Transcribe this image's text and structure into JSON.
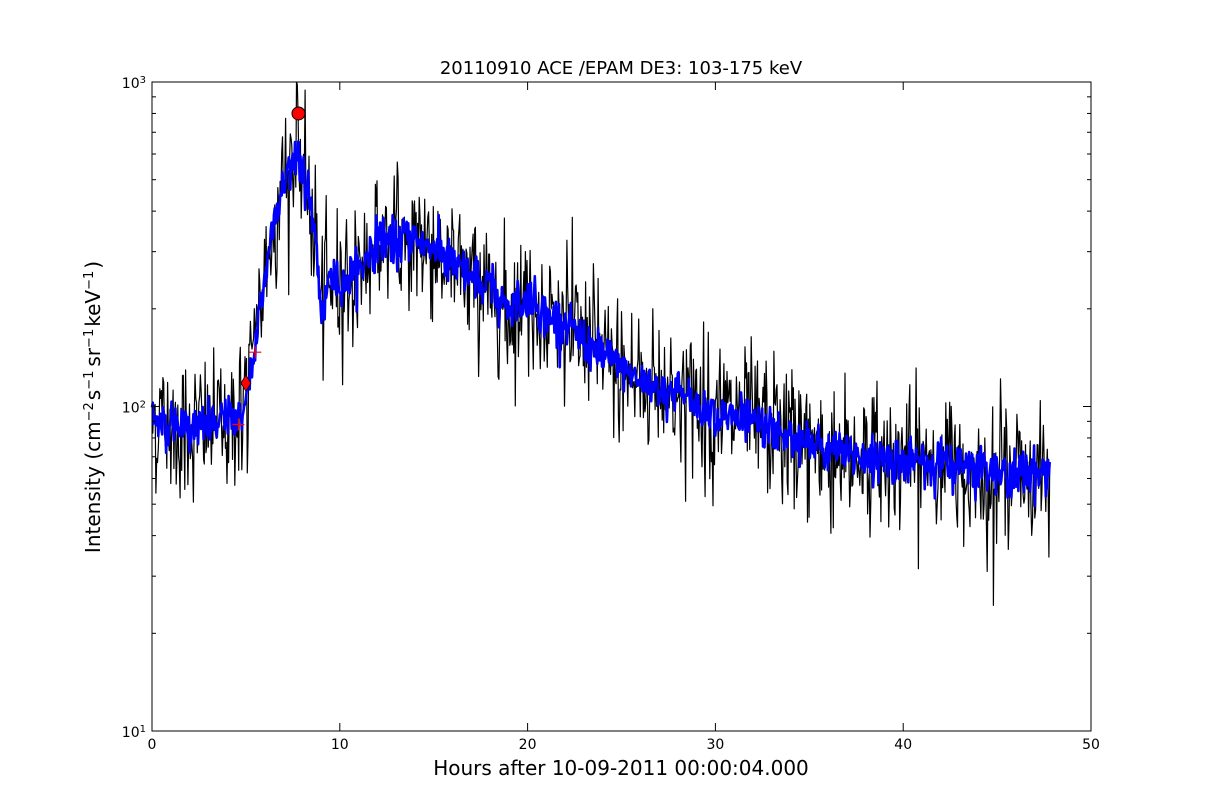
{
  "chart_data": {
    "type": "line",
    "title": "20110910 ACE /EPAM DE3: 103-175 keV",
    "xlabel": "Hours after 10-09-2011 00:00:04.000",
    "ylabel_parts": {
      "lead": "Intensity (cm",
      "exp1": "−2",
      "mid1": "s",
      "exp2": "−1",
      "mid2": "sr",
      "exp3": "−1",
      "mid3": "keV",
      "exp4": "−1",
      "tail": ")"
    },
    "xlim": [
      0,
      50
    ],
    "ylim": [
      10,
      1000
    ],
    "yscale": "log",
    "grid": false,
    "x_ticks": [
      0,
      10,
      20,
      30,
      40,
      50
    ],
    "x_tick_labels": [
      "0",
      "10",
      "20",
      "30",
      "40",
      "50"
    ],
    "y_tick_labels": [
      {
        "value": 10,
        "base": "10",
        "exp": "1"
      },
      {
        "value": 100,
        "base": "10",
        "exp": "2"
      },
      {
        "value": 1000,
        "base": "10",
        "exp": "3"
      }
    ],
    "series": [
      {
        "role": "raw",
        "color": "#000000",
        "profile": [
          [
            0.0,
            92
          ],
          [
            1.0,
            88
          ],
          [
            2.0,
            85
          ],
          [
            3.0,
            88
          ],
          [
            4.0,
            90
          ],
          [
            4.8,
            95
          ],
          [
            5.2,
            120
          ],
          [
            5.5,
            160
          ],
          [
            6.0,
            250
          ],
          [
            6.5,
            380
          ],
          [
            7.0,
            480
          ],
          [
            7.5,
            580
          ],
          [
            7.8,
            650
          ],
          [
            8.0,
            500
          ],
          [
            8.3,
            450
          ],
          [
            8.7,
            350
          ],
          [
            9.0,
            190
          ],
          [
            9.5,
            250
          ],
          [
            10.0,
            240
          ],
          [
            11.0,
            260
          ],
          [
            12.0,
            330
          ],
          [
            13.0,
            320
          ],
          [
            14.0,
            330
          ],
          [
            15.0,
            310
          ],
          [
            16.0,
            270
          ],
          [
            17.0,
            250
          ],
          [
            18.0,
            230
          ],
          [
            19.0,
            200
          ],
          [
            20.0,
            220
          ],
          [
            21.0,
            190
          ],
          [
            22.0,
            180
          ],
          [
            23.0,
            160
          ],
          [
            24.0,
            145
          ],
          [
            25.0,
            130
          ],
          [
            26.0,
            120
          ],
          [
            28.0,
            110
          ],
          [
            30.0,
            95
          ],
          [
            32.0,
            90
          ],
          [
            34.0,
            80
          ],
          [
            36.0,
            72
          ],
          [
            38.0,
            70
          ],
          [
            40.0,
            68
          ],
          [
            42.0,
            67
          ],
          [
            44.0,
            64
          ],
          [
            46.0,
            62
          ],
          [
            47.8,
            63
          ]
        ],
        "noise_sigma": 0.22,
        "n_points": 1150
      },
      {
        "role": "smoothed",
        "color": "#0000ff",
        "noise_sigma": 0.07
      }
    ],
    "markers": [
      {
        "shape": "circle",
        "x": 7.8,
        "y": 800,
        "color": "#ff0000"
      },
      {
        "shape": "diamond",
        "x": 5.0,
        "y": 118,
        "color": "#ff0000"
      },
      {
        "shape": "plus",
        "x": 4.6,
        "y": 88,
        "color": "#ff0000"
      },
      {
        "shape": "plus",
        "x": 5.5,
        "y": 147,
        "color": "#ff0000"
      }
    ]
  }
}
